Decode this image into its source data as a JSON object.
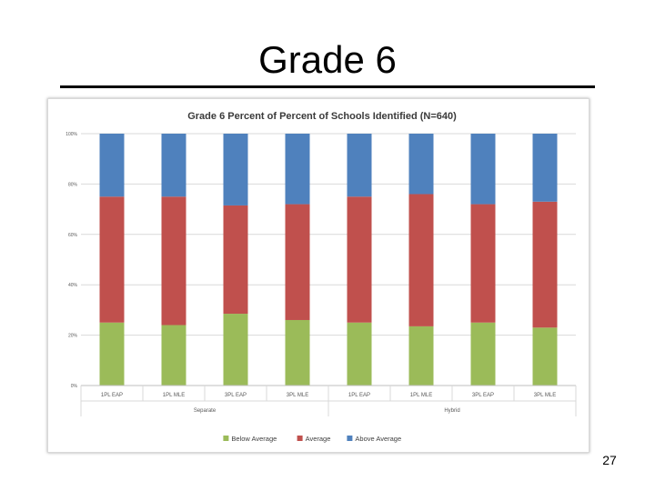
{
  "slide": {
    "title": "Grade 6",
    "page_number": "27"
  },
  "chart_data": {
    "type": "bar",
    "stacked": true,
    "title": "Grade 6 Percent of Percent of Schools Identified (N=640)",
    "categories": [
      "1PL EAP",
      "1PL MLE",
      "3PL EAP",
      "3PL MLE",
      "1PL EAP",
      "1PL MLE",
      "3PL EAP",
      "3PL MLE"
    ],
    "groups": [
      {
        "label": "Separate",
        "span": [
          0,
          3
        ]
      },
      {
        "label": "Hybrid",
        "span": [
          4,
          7
        ]
      }
    ],
    "series": [
      {
        "name": "Below Average",
        "color": "#9bbb59",
        "values": [
          25,
          24,
          28.5,
          26,
          25,
          23.5,
          25,
          23
        ]
      },
      {
        "name": "Average",
        "color": "#c0504d",
        "values": [
          50,
          51,
          43,
          46,
          50,
          52.5,
          47,
          50
        ]
      },
      {
        "name": "Above Average",
        "color": "#4f81bd",
        "values": [
          25,
          25,
          28.5,
          28,
          25,
          24,
          28,
          27
        ]
      }
    ],
    "yticks": [
      "0%",
      "20%",
      "40%",
      "60%",
      "80%",
      "100%"
    ],
    "ylim": [
      0,
      100
    ],
    "grid": true,
    "legend": "bottom"
  }
}
